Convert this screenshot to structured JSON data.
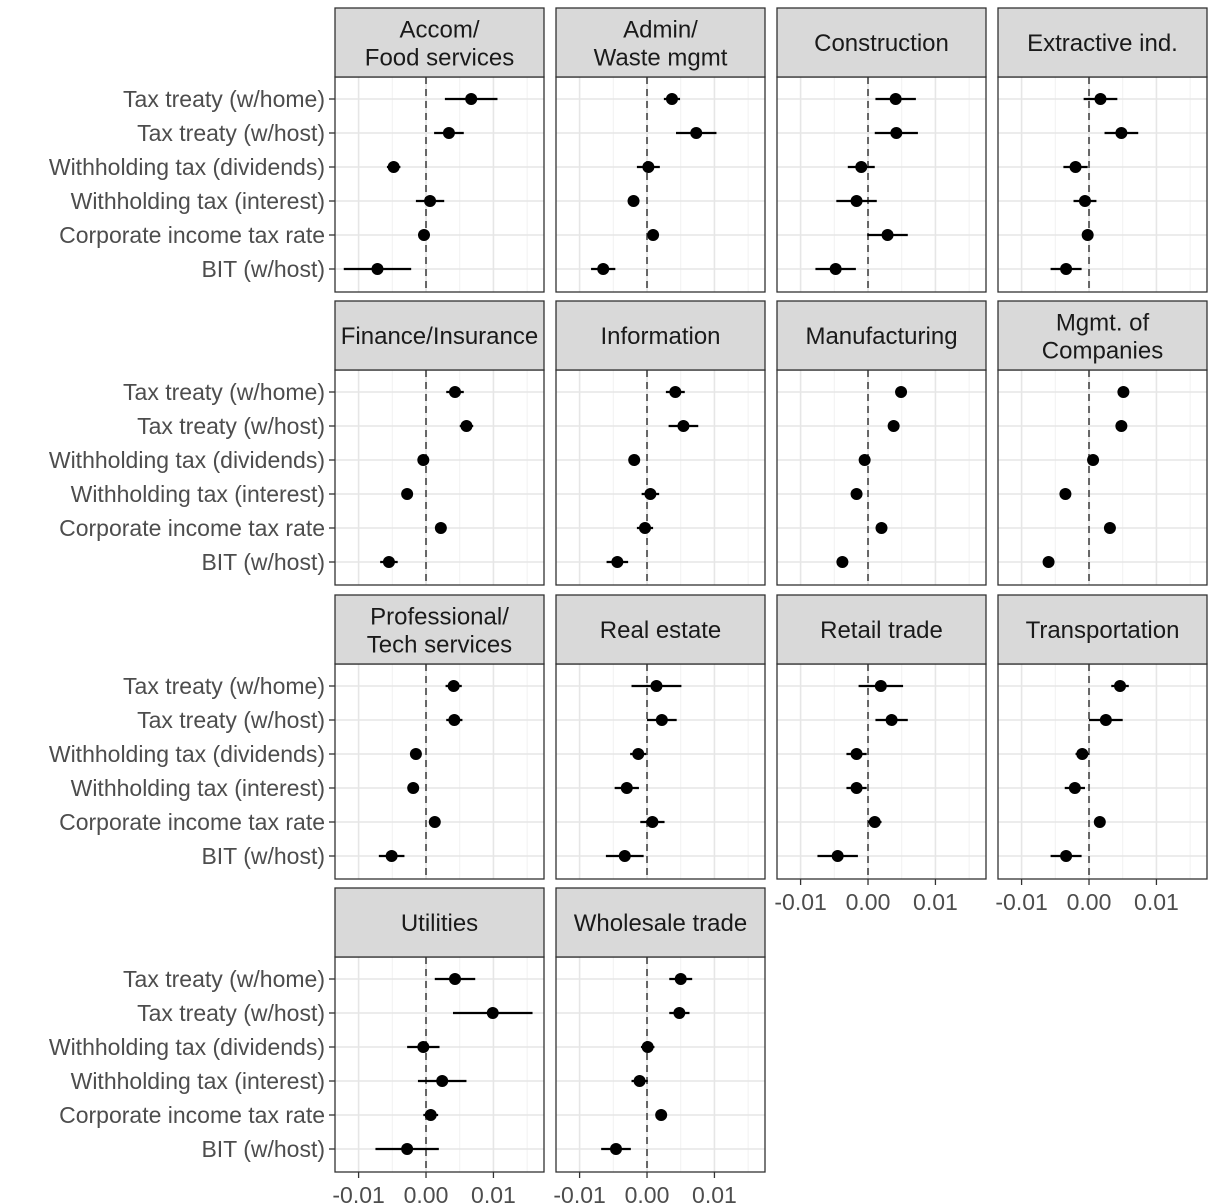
{
  "chart_data": {
    "type": "dot-and-whisker",
    "grid": true,
    "x_ticks": [
      -0.01,
      0.0,
      0.01
    ],
    "x_tick_labels": [
      "-0.01",
      "0.00",
      "0.01"
    ],
    "xlim": [
      -0.0135,
      0.0175
    ],
    "reference_line": 0,
    "categories": [
      "Tax treaty (w/home)",
      "Tax treaty (w/host)",
      "Withholding tax (dividends)",
      "Withholding tax (interest)",
      "Corporate income tax rate",
      "BIT (w/host)"
    ],
    "panels": [
      {
        "title": [
          "Accom/",
          "Food services"
        ],
        "estimates": [
          0.0067,
          0.0034,
          -0.0048,
          0.0006,
          -0.0003,
          -0.0072
        ],
        "lower": [
          0.0028,
          0.0012,
          -0.0058,
          -0.0015,
          -0.001,
          -0.0122
        ],
        "upper": [
          0.0106,
          0.0056,
          -0.0038,
          0.0027,
          0.0004,
          -0.0022
        ]
      },
      {
        "title": [
          "Admin/",
          "Waste mgmt"
        ],
        "estimates": [
          0.0037,
          0.0073,
          0.0002,
          -0.002,
          0.0009,
          -0.0065
        ],
        "lower": [
          0.0025,
          0.0043,
          -0.0015,
          -0.0027,
          0.0004,
          -0.0083
        ],
        "upper": [
          0.0049,
          0.0103,
          0.0019,
          -0.0013,
          0.0014,
          -0.0047
        ]
      },
      {
        "title": [
          "Construction"
        ],
        "estimates": [
          0.0041,
          0.0042,
          -0.001,
          -0.0017,
          0.0029,
          -0.0048
        ],
        "lower": [
          0.0011,
          0.001,
          -0.003,
          -0.0047,
          -0.0001,
          -0.0078
        ],
        "upper": [
          0.0071,
          0.0074,
          0.001,
          0.0013,
          0.0059,
          -0.0018
        ]
      },
      {
        "title": [
          "Extractive ind."
        ],
        "estimates": [
          0.0017,
          0.0048,
          -0.002,
          -0.0006,
          -0.0002,
          -0.0034
        ],
        "lower": [
          -0.0008,
          0.0023,
          -0.0038,
          -0.0023,
          -0.0006,
          -0.0057
        ],
        "upper": [
          0.0042,
          0.0073,
          -0.0002,
          0.0011,
          0.0002,
          -0.0011
        ]
      },
      {
        "title": [
          "Finance/Insurance"
        ],
        "estimates": [
          0.0043,
          0.006,
          -0.0004,
          -0.0028,
          0.0022,
          -0.0055
        ],
        "lower": [
          0.003,
          0.005,
          -0.0007,
          -0.0031,
          0.0019,
          -0.0068
        ],
        "upper": [
          0.0056,
          0.007,
          -0.0001,
          -0.0025,
          0.0025,
          -0.0042
        ]
      },
      {
        "title": [
          "Information"
        ],
        "estimates": [
          0.0042,
          0.0054,
          -0.0019,
          0.0005,
          -0.0003,
          -0.0044
        ],
        "lower": [
          0.0028,
          0.0032,
          -0.0027,
          -0.0008,
          -0.0015,
          -0.006
        ],
        "upper": [
          0.0056,
          0.0076,
          -0.0011,
          0.0018,
          0.0009,
          -0.0028
        ]
      },
      {
        "title": [
          "Manufacturing"
        ],
        "estimates": [
          0.0049,
          0.0038,
          -0.0005,
          -0.0017,
          0.002,
          -0.0038
        ],
        "lower": [
          0.0044,
          0.0033,
          -0.0008,
          -0.002,
          0.0016,
          -0.0041
        ],
        "upper": [
          0.0054,
          0.0043,
          -0.0002,
          -0.0014,
          0.0024,
          -0.0035
        ]
      },
      {
        "title": [
          "Mgmt. of",
          "Companies"
        ],
        "estimates": [
          0.0051,
          0.0048,
          0.0006,
          -0.0035,
          0.0031,
          -0.006
        ],
        "lower": [
          0.0043,
          0.0041,
          0.0003,
          -0.0038,
          0.0028,
          -0.0067
        ],
        "upper": [
          0.0059,
          0.0055,
          0.0009,
          -0.0032,
          0.0034,
          -0.0053
        ]
      },
      {
        "title": [
          "Professional/",
          "Tech services"
        ],
        "estimates": [
          0.0041,
          0.0042,
          -0.0015,
          -0.0019,
          0.0013,
          -0.0051
        ],
        "lower": [
          0.0029,
          0.003,
          -0.002,
          -0.0022,
          0.001,
          -0.007
        ],
        "upper": [
          0.0053,
          0.0054,
          -0.001,
          -0.0016,
          0.0016,
          -0.0032
        ]
      },
      {
        "title": [
          "Real estate"
        ],
        "estimates": [
          0.0014,
          0.0022,
          -0.0013,
          -0.003,
          0.0008,
          -0.0033
        ],
        "lower": [
          -0.0023,
          0.0,
          -0.0025,
          -0.0048,
          -0.001,
          -0.0061
        ],
        "upper": [
          0.0051,
          0.0044,
          -0.0001,
          -0.0012,
          0.0026,
          -0.0005
        ]
      },
      {
        "title": [
          "Retail trade"
        ],
        "estimates": [
          0.0019,
          0.0035,
          -0.0017,
          -0.0017,
          0.001,
          -0.0045
        ],
        "lower": [
          -0.0014,
          0.0011,
          -0.0032,
          -0.0032,
          0.0,
          -0.0075
        ],
        "upper": [
          0.0052,
          0.0059,
          -0.0002,
          -0.0002,
          0.002,
          -0.0015
        ]
      },
      {
        "title": [
          "Transportation"
        ],
        "estimates": [
          0.0046,
          0.0025,
          -0.001,
          -0.0021,
          0.0016,
          -0.0034
        ],
        "lower": [
          0.0033,
          0.0,
          -0.002,
          -0.0036,
          0.0008,
          -0.0057
        ],
        "upper": [
          0.0059,
          0.005,
          0.0,
          -0.0006,
          0.0024,
          -0.0011
        ]
      },
      {
        "title": [
          "Utilities"
        ],
        "estimates": [
          0.0043,
          0.0099,
          -0.0004,
          0.0024,
          0.0007,
          -0.0028
        ],
        "lower": [
          0.0013,
          0.004,
          -0.0028,
          -0.0012,
          -0.0004,
          -0.0075
        ],
        "upper": [
          0.0073,
          0.0158,
          0.002,
          0.006,
          0.0018,
          0.0019
        ]
      },
      {
        "title": [
          "Wholesale trade"
        ],
        "estimates": [
          0.005,
          0.0048,
          0.0001,
          -0.0011,
          0.0021,
          -0.0046
        ],
        "lower": [
          0.0033,
          0.0033,
          -0.0009,
          -0.0023,
          0.0017,
          -0.0068
        ],
        "upper": [
          0.0067,
          0.0063,
          0.0011,
          0.0001,
          0.0025,
          -0.0024
        ]
      }
    ]
  }
}
